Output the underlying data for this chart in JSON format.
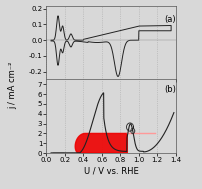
{
  "xlim": [
    0.0,
    1.4
  ],
  "ylim_a": [
    -0.25,
    0.22
  ],
  "ylim_b": [
    0.0,
    7.5
  ],
  "yticks_a": [
    -0.2,
    -0.1,
    0.0,
    0.1,
    0.2
  ],
  "yticks_b": [
    0,
    1,
    2,
    3,
    4,
    5,
    6,
    7
  ],
  "xlabel": "U / V vs. RHE",
  "ylabel": "j / mA cm⁻²",
  "label_a": "(a)",
  "label_b": "(b)",
  "line_color": "#222222",
  "red_color": "#ee0000",
  "pink_color": "#ff9999",
  "bg_color": "#d8d8d8",
  "grid_color": "#aaaaaa",
  "figsize": [
    2.02,
    1.89
  ],
  "dpi": 100
}
